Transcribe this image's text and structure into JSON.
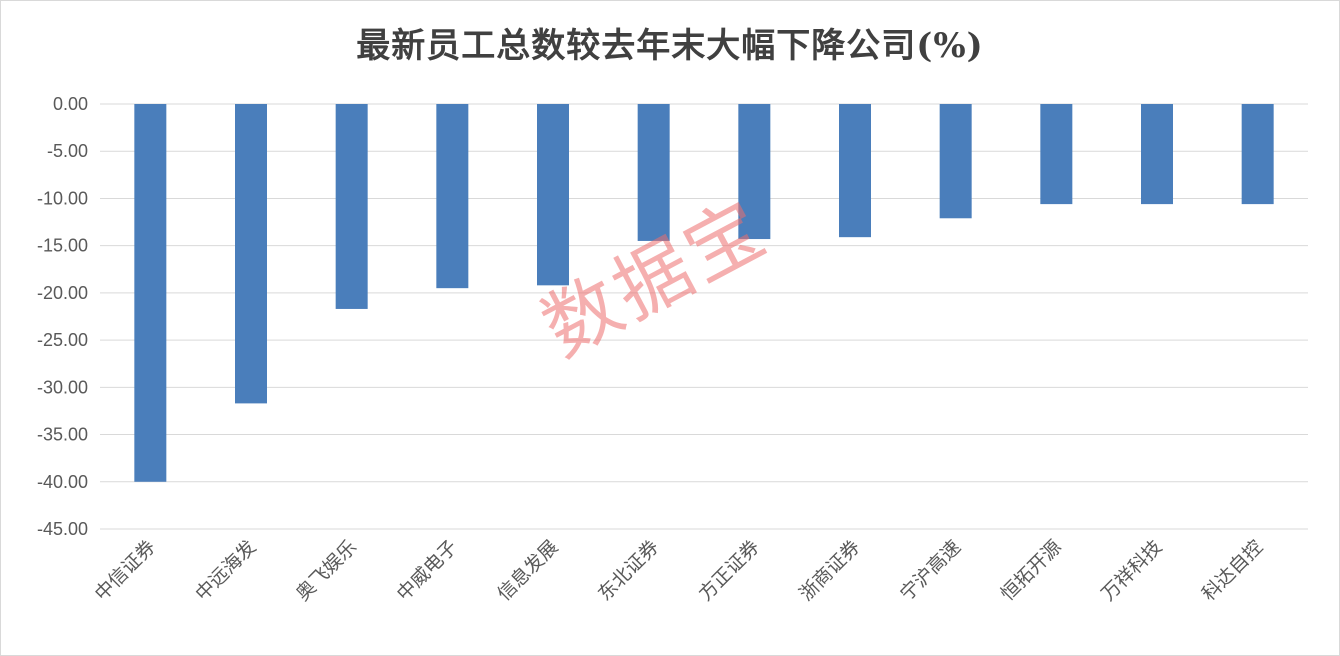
{
  "chart_data": {
    "type": "bar",
    "title": "最新员工总数较去年末大幅下降公司(%)",
    "categories": [
      "中信证券",
      "中远海发",
      "奥飞娱乐",
      "中威电子",
      "信息发展",
      "东北证券",
      "方正证券",
      "浙商证券",
      "宁沪高速",
      "恒拓开源",
      "万祥科技",
      "科达自控"
    ],
    "values": [
      -40.0,
      -31.7,
      -21.7,
      -19.5,
      -19.2,
      -14.5,
      -14.3,
      -14.1,
      -12.1,
      -10.6,
      -10.6,
      -10.6
    ],
    "ylim": [
      -45,
      0
    ],
    "yticks": [
      "0.00",
      "-5.00",
      "-10.00",
      "-15.00",
      "-20.00",
      "-25.00",
      "-30.00",
      "-35.00",
      "-40.00",
      "-45.00"
    ],
    "xlabel": "",
    "ylabel": "",
    "grid": true,
    "bar_color": "#4a7ebb",
    "grid_color": "#d9d9d9"
  },
  "watermark": "数据宝"
}
